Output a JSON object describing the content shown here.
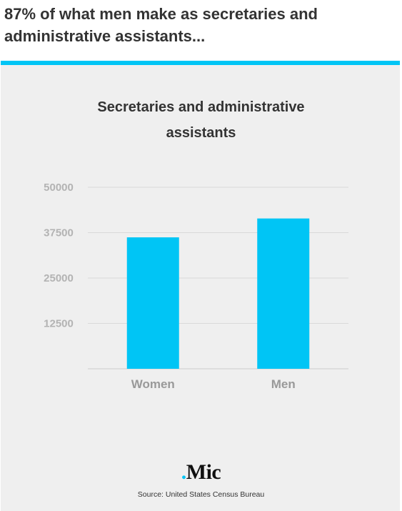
{
  "headline": "87% of what men make as secretaries and administrative assistants...",
  "colors": {
    "accent": "#00c5f5",
    "bar": "#00c5f5",
    "card_bg": "#efefef",
    "grid": "#d9d9d9"
  },
  "chart_data": {
    "type": "bar",
    "title_line1": "Secretaries and administrative",
    "title_line2": "assistants",
    "categories": [
      "Women",
      "Men"
    ],
    "values": [
      36200,
      41400
    ],
    "yticks": [
      12500,
      25000,
      37500,
      50000
    ],
    "ylim": [
      0,
      50000
    ],
    "xlabel": "",
    "ylabel": "",
    "grid": true,
    "legend": "none"
  },
  "brand": {
    "dot": ".",
    "name": "Mic"
  },
  "source": "Source: United States Census Bureau"
}
